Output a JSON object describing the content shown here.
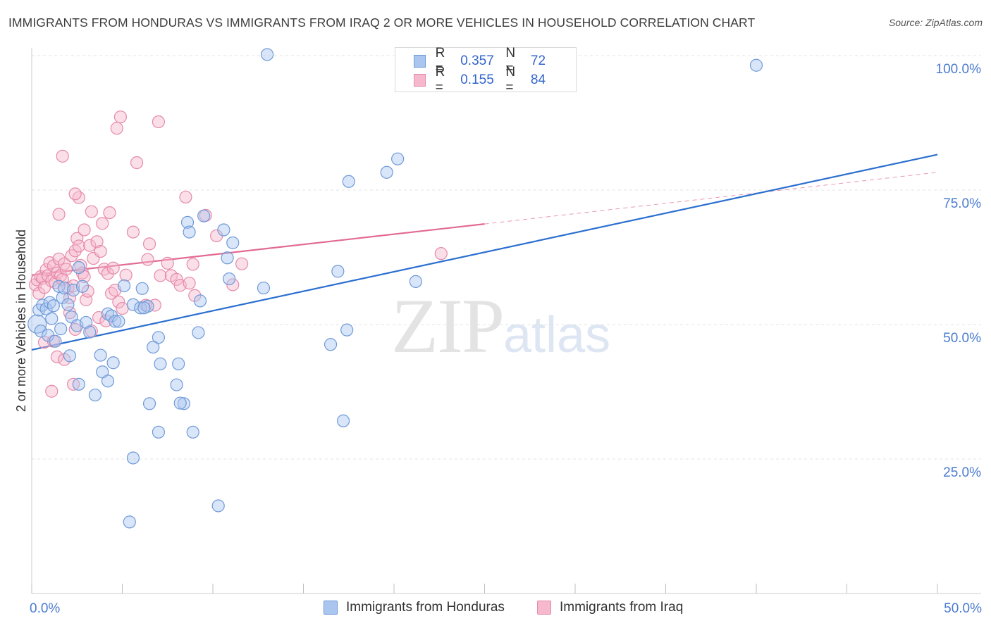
{
  "title": "IMMIGRANTS FROM HONDURAS VS IMMIGRANTS FROM IRAQ 2 OR MORE VEHICLES IN HOUSEHOLD CORRELATION CHART",
  "source": "Source: ZipAtlas.com",
  "watermark": {
    "zip": "ZIP",
    "atlas": "atlas"
  },
  "legend": {
    "rows": [
      {
        "r_label": "R =",
        "r_value": "0.357",
        "n_label": "N =",
        "n_value": "72"
      },
      {
        "r_label": "R =",
        "r_value": "0.155",
        "n_label": "N =",
        "n_value": "84"
      }
    ]
  },
  "bottom_legend": {
    "honduras": "Immigrants from Honduras",
    "iraq": "Immigrants from Iraq"
  },
  "colors": {
    "honduras_fill": "#aac6ef",
    "honduras_stroke": "#6f9ad8",
    "honduras_line": "#2a6fd0",
    "iraq_fill": "#f6b8cd",
    "iraq_stroke": "#e58aaa",
    "iraq_line": "#e26a94",
    "grid": "#e3e3e3",
    "tick_text": "#4a7bd0"
  },
  "chart_data": {
    "type": "scatter",
    "title": "IMMIGRANTS FROM HONDURAS VS IMMIGRANTS FROM IRAQ 2 OR MORE VEHICLES IN HOUSEHOLD CORRELATION CHART",
    "xlabel": "",
    "ylabel": "2 or more Vehicles in Household",
    "xlim": [
      0,
      50
    ],
    "ylim": [
      0,
      102
    ],
    "x_tick_labels": [
      "0.0%",
      "50.0%"
    ],
    "y_ticks": [
      25,
      50,
      75,
      100
    ],
    "y_tick_labels": [
      "25.0%",
      "50.0%",
      "75.0%",
      "100.0%"
    ],
    "legend_position": "top-center",
    "series": [
      {
        "name": "Immigrants from Honduras",
        "R": 0.357,
        "N": 72,
        "trend": {
          "x": [
            0,
            50
          ],
          "y": [
            45.3,
            81.6
          ]
        },
        "points": [
          [
            0.3,
            50.1
          ],
          [
            0.4,
            52.7
          ],
          [
            0.6,
            53.6
          ],
          [
            0.8,
            52.9
          ],
          [
            1.0,
            54.1
          ],
          [
            1.2,
            53.5
          ],
          [
            1.5,
            57.1
          ],
          [
            1.7,
            55.0
          ],
          [
            1.8,
            56.8
          ],
          [
            2.0,
            53.7
          ],
          [
            0.5,
            48.8
          ],
          [
            0.9,
            48.0
          ],
          [
            1.1,
            51.1
          ],
          [
            1.3,
            46.9
          ],
          [
            1.6,
            49.2
          ],
          [
            2.3,
            56.4
          ],
          [
            2.2,
            51.4
          ],
          [
            2.5,
            49.8
          ],
          [
            3.0,
            50.4
          ],
          [
            2.8,
            57.1
          ],
          [
            3.2,
            48.6
          ],
          [
            3.8,
            44.3
          ],
          [
            4.2,
            52.0
          ],
          [
            4.4,
            51.6
          ],
          [
            4.6,
            50.6
          ],
          [
            5.1,
            57.2
          ],
          [
            5.6,
            53.7
          ],
          [
            6.1,
            56.7
          ],
          [
            6.0,
            53.1
          ],
          [
            6.4,
            53.4
          ],
          [
            6.2,
            53.1
          ],
          [
            4.8,
            50.6
          ],
          [
            4.5,
            42.9
          ],
          [
            4.2,
            39.5
          ],
          [
            3.9,
            41.2
          ],
          [
            2.6,
            38.9
          ],
          [
            3.5,
            36.9
          ],
          [
            2.1,
            44.2
          ],
          [
            2.6,
            60.6
          ],
          [
            8.6,
            69.0
          ],
          [
            8.7,
            67.2
          ],
          [
            9.5,
            70.2
          ],
          [
            10.6,
            67.6
          ],
          [
            11.1,
            65.2
          ],
          [
            10.8,
            62.4
          ],
          [
            10.9,
            58.5
          ],
          [
            12.8,
            56.8
          ],
          [
            9.3,
            54.4
          ],
          [
            9.2,
            48.5
          ],
          [
            7.0,
            47.6
          ],
          [
            6.7,
            45.8
          ],
          [
            7.1,
            42.7
          ],
          [
            8.1,
            42.7
          ],
          [
            8.0,
            38.8
          ],
          [
            8.4,
            35.3
          ],
          [
            8.2,
            35.4
          ],
          [
            7.0,
            30.0
          ],
          [
            8.9,
            30.0
          ],
          [
            6.5,
            35.3
          ],
          [
            5.6,
            25.2
          ],
          [
            5.4,
            13.3
          ],
          [
            10.3,
            16.3
          ],
          [
            17.2,
            32.1
          ],
          [
            16.9,
            59.9
          ],
          [
            16.5,
            46.3
          ],
          [
            17.5,
            76.6
          ],
          [
            19.6,
            78.3
          ],
          [
            20.2,
            80.8
          ],
          [
            17.4,
            49.0
          ],
          [
            21.2,
            58.0
          ],
          [
            13.0,
            100.2
          ],
          [
            40.0,
            98.2
          ]
        ]
      },
      {
        "name": "Immigrants from Iraq",
        "R": 0.155,
        "N": 84,
        "trend": {
          "x": [
            0,
            25
          ],
          "y": [
            59.2,
            68.7
          ]
        },
        "trend_dashed_extension": {
          "x": [
            25,
            50
          ],
          "y": [
            68.7,
            78.3
          ]
        },
        "points": [
          [
            0.2,
            57.4
          ],
          [
            0.3,
            58.3
          ],
          [
            0.4,
            55.8
          ],
          [
            0.5,
            58.9
          ],
          [
            0.6,
            58.6
          ],
          [
            0.7,
            56.9
          ],
          [
            0.8,
            60.2
          ],
          [
            0.9,
            59.1
          ],
          [
            1.0,
            61.5
          ],
          [
            1.1,
            58.1
          ],
          [
            1.2,
            60.9
          ],
          [
            1.3,
            57.8
          ],
          [
            1.4,
            59.6
          ],
          [
            1.5,
            62.2
          ],
          [
            1.6,
            59.1
          ],
          [
            1.7,
            58.4
          ],
          [
            1.8,
            61.3
          ],
          [
            1.9,
            60.3
          ],
          [
            2.0,
            56.8
          ],
          [
            2.1,
            55.0
          ],
          [
            2.2,
            62.8
          ],
          [
            2.3,
            57.2
          ],
          [
            2.4,
            63.7
          ],
          [
            2.5,
            66.0
          ],
          [
            2.6,
            64.6
          ],
          [
            2.7,
            61.0
          ],
          [
            2.8,
            59.6
          ],
          [
            2.9,
            58.9
          ],
          [
            3.0,
            54.6
          ],
          [
            3.1,
            56.2
          ],
          [
            3.2,
            64.7
          ],
          [
            3.4,
            62.3
          ],
          [
            3.6,
            65.4
          ],
          [
            3.8,
            63.6
          ],
          [
            4.0,
            60.3
          ],
          [
            4.2,
            59.5
          ],
          [
            4.4,
            55.8
          ],
          [
            4.6,
            56.4
          ],
          [
            4.8,
            54.2
          ],
          [
            5.0,
            53.0
          ],
          [
            0.7,
            46.7
          ],
          [
            1.2,
            46.9
          ],
          [
            2.1,
            52.2
          ],
          [
            2.4,
            49.1
          ],
          [
            3.3,
            48.8
          ],
          [
            3.7,
            51.3
          ],
          [
            4.1,
            50.7
          ],
          [
            1.4,
            44.0
          ],
          [
            2.3,
            38.9
          ],
          [
            1.1,
            37.6
          ],
          [
            1.8,
            43.5
          ],
          [
            4.5,
            60.5
          ],
          [
            5.2,
            59.2
          ],
          [
            6.3,
            53.6
          ],
          [
            6.8,
            53.6
          ],
          [
            7.1,
            59.1
          ],
          [
            7.5,
            61.4
          ],
          [
            7.7,
            59.1
          ],
          [
            8.0,
            58.4
          ],
          [
            8.2,
            57.3
          ],
          [
            8.7,
            57.7
          ],
          [
            9.0,
            55.4
          ],
          [
            1.7,
            81.3
          ],
          [
            2.6,
            73.6
          ],
          [
            2.4,
            74.3
          ],
          [
            3.3,
            71.0
          ],
          [
            4.7,
            86.5
          ],
          [
            4.9,
            88.6
          ],
          [
            7.0,
            87.7
          ],
          [
            5.8,
            80.1
          ],
          [
            1.5,
            70.5
          ],
          [
            2.9,
            67.6
          ],
          [
            4.3,
            70.8
          ],
          [
            3.9,
            68.8
          ],
          [
            5.6,
            67.2
          ],
          [
            6.5,
            65.0
          ],
          [
            8.5,
            73.7
          ],
          [
            9.6,
            70.3
          ],
          [
            10.2,
            66.5
          ],
          [
            11.1,
            57.4
          ],
          [
            11.6,
            61.3
          ],
          [
            8.9,
            61.2
          ],
          [
            6.4,
            62.1
          ],
          [
            22.6,
            63.2
          ]
        ]
      }
    ]
  }
}
